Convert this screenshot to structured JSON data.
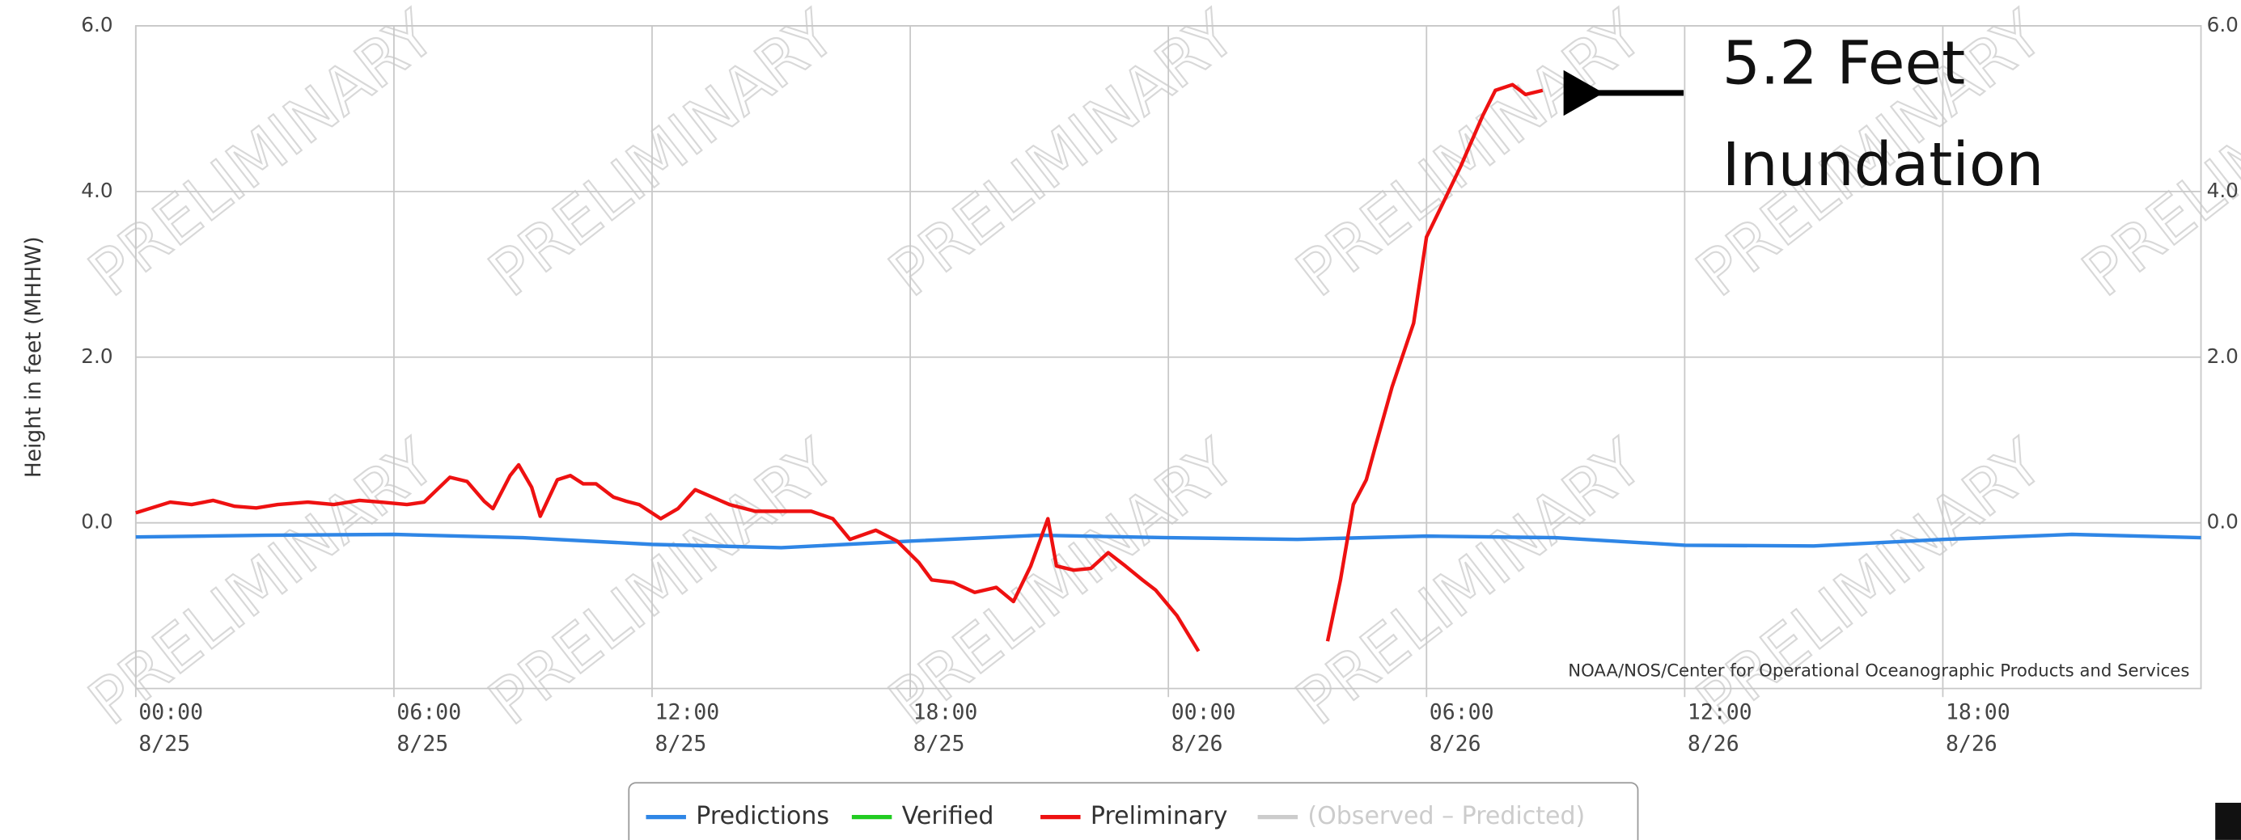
{
  "chart_data": {
    "type": "line",
    "y_label": "Height in feet (MHHW)",
    "source": "NOAA/NOS/Center for Operational Oceanographic Products and Services",
    "watermark": "PRELIMINARY",
    "annotations": [
      "5.2 Feet",
      "Inundation"
    ],
    "xlim": [
      0,
      48
    ],
    "xticks": [
      {
        "value": 0,
        "label": "00:00\n8/25"
      },
      {
        "value": 6,
        "label": "06:00\n8/25"
      },
      {
        "value": 12,
        "label": "12:00\n8/25"
      },
      {
        "value": 18,
        "label": "18:00\n8/25"
      },
      {
        "value": 24,
        "label": "00:00\n8/26"
      },
      {
        "value": 30,
        "label": "06:00\n8/26"
      },
      {
        "value": 36,
        "label": "12:00\n8/26"
      },
      {
        "value": 42,
        "label": "18:00\n8/26"
      }
    ],
    "ylim": [
      -2,
      6
    ],
    "yticks": [
      {
        "value": 6,
        "label": "6.0"
      },
      {
        "value": 4,
        "label": "4.0"
      },
      {
        "value": 2,
        "label": "2.0"
      },
      {
        "value": 0,
        "label": "0.0"
      }
    ],
    "grid": true,
    "legend": "bottom",
    "series": [
      {
        "name": "Predictions",
        "color": "#2f86e6",
        "visible": true,
        "x": [
          0,
          3,
          6,
          9,
          12,
          15,
          18,
          21,
          24,
          27,
          30,
          33,
          36,
          39,
          42,
          45,
          48
        ],
        "values": [
          -0.17,
          -0.15,
          -0.14,
          -0.18,
          -0.26,
          -0.3,
          -0.22,
          -0.15,
          -0.18,
          -0.2,
          -0.16,
          -0.18,
          -0.27,
          -0.28,
          -0.2,
          -0.14,
          -0.18
        ]
      },
      {
        "name": "Verified",
        "color": "#22cc22",
        "visible": true,
        "x": [],
        "values": []
      },
      {
        "name": "Preliminary",
        "color": "#ee1111",
        "visible": true,
        "x": [
          0,
          0.8,
          1.3,
          1.8,
          2.3,
          2.8,
          3.3,
          4,
          4.6,
          5.2,
          5.7,
          6.3,
          6.7,
          7.3,
          7.7,
          8.1,
          8.3,
          8.7,
          8.9,
          9.2,
          9.4,
          9.8,
          10.1,
          10.4,
          10.7,
          11.1,
          11.4,
          11.7,
          12.2,
          12.6,
          13,
          13.4,
          13.8,
          14.4,
          15,
          15.7,
          16.2,
          16.6,
          17.2,
          17.7,
          18.2,
          18.5,
          19,
          19.5,
          20,
          20.4,
          20.8,
          21.2,
          21.4,
          21.8,
          22.2,
          22.6,
          23,
          23.4,
          23.7,
          24.2,
          24.7,
          26,
          27.7,
          28,
          28.3,
          28.6,
          28.8,
          29.2,
          29.7,
          30,
          30.4,
          30.8,
          31.3,
          31.6,
          32,
          32.3,
          32.7
        ],
        "values": [
          0.12,
          0.25,
          0.22,
          0.27,
          0.2,
          0.18,
          0.22,
          0.25,
          0.22,
          0.27,
          0.25,
          0.22,
          0.25,
          0.55,
          0.5,
          0.26,
          0.17,
          0.57,
          0.7,
          0.43,
          0.08,
          0.52,
          0.57,
          0.47,
          0.47,
          0.31,
          0.26,
          0.22,
          0.05,
          0.17,
          0.4,
          0.31,
          0.22,
          0.14,
          0.14,
          0.14,
          0.05,
          -0.2,
          -0.09,
          -0.22,
          -0.48,
          -0.69,
          -0.72,
          -0.84,
          -0.78,
          -0.95,
          -0.52,
          0.05,
          -0.52,
          -0.57,
          -0.55,
          -0.36,
          -0.52,
          -0.69,
          -0.81,
          -1.12,
          -1.55,
          null,
          -1.43,
          -0.69,
          0.22,
          0.52,
          0.9,
          1.64,
          2.41,
          3.45,
          3.88,
          4.31,
          4.91,
          5.22,
          5.29,
          5.17,
          5.22
        ]
      },
      {
        "name": "(Observed – Predicted)",
        "color": "#cccccc",
        "visible": false,
        "x": [],
        "values": []
      }
    ]
  }
}
